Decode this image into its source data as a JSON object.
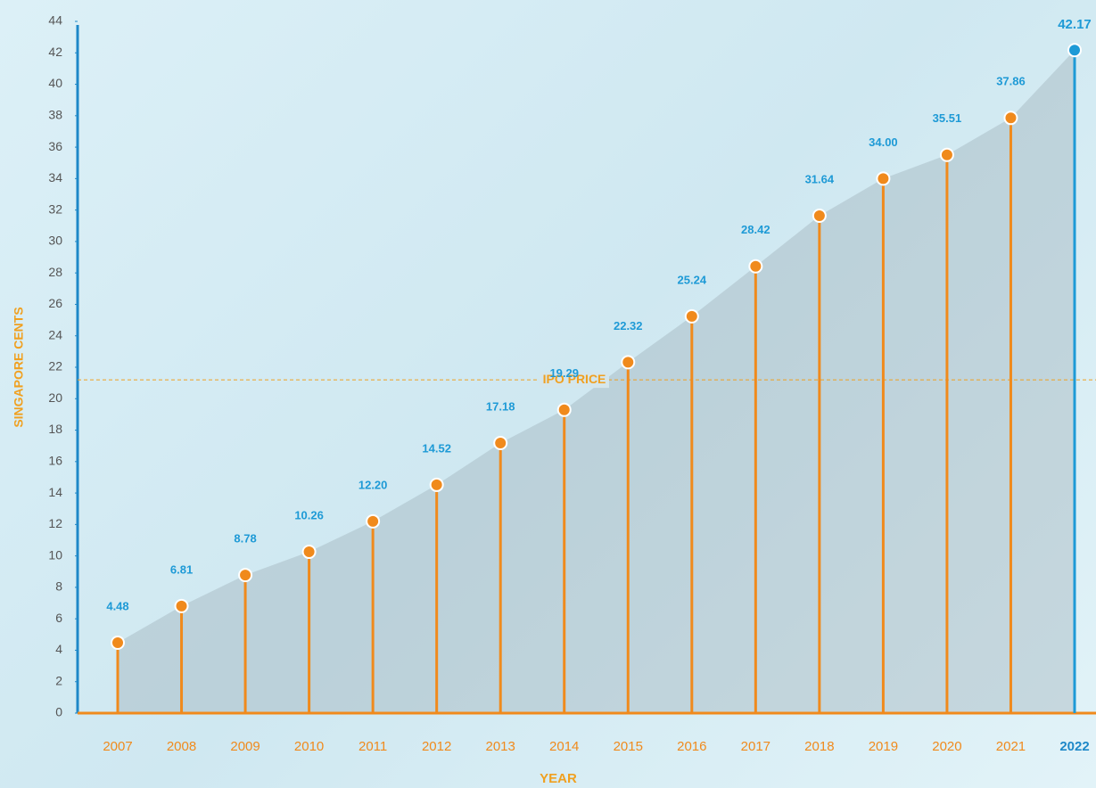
{
  "chart_data": {
    "type": "lollipop",
    "x_label": "YEAR",
    "y_label": "SINGAPORE CENTS",
    "categories": [
      "2007",
      "2008",
      "2009",
      "2010",
      "2011",
      "2012",
      "2013",
      "2014",
      "2015",
      "2016",
      "2017",
      "2018",
      "2019",
      "2020",
      "2021",
      "2022"
    ],
    "series": [
      {
        "color": "#f08a1c",
        "highlight_color": "#1e9ad6",
        "values": [
          4.48,
          6.81,
          8.78,
          10.26,
          12.2,
          14.52,
          17.18,
          19.29,
          22.32,
          25.24,
          28.42,
          31.64,
          34.0,
          35.51,
          37.86,
          42.17
        ],
        "value_labels": [
          "4.48",
          "6.81",
          "8.78",
          "10.26",
          "12.20",
          "14.52",
          "17.18",
          "19.29",
          "22.32",
          "25.24",
          "28.42",
          "31.64",
          "34.00",
          "35.51",
          "37.86",
          "42.17"
        ]
      }
    ],
    "reference_line": {
      "label": "IPO PRICE",
      "value": 21.2
    },
    "ylim": [
      0,
      44
    ],
    "yticks": [
      0,
      2,
      4,
      6,
      8,
      10,
      12,
      14,
      16,
      18,
      20,
      22,
      24,
      26,
      28,
      30,
      32,
      34,
      36,
      38,
      40,
      42,
      44
    ]
  }
}
